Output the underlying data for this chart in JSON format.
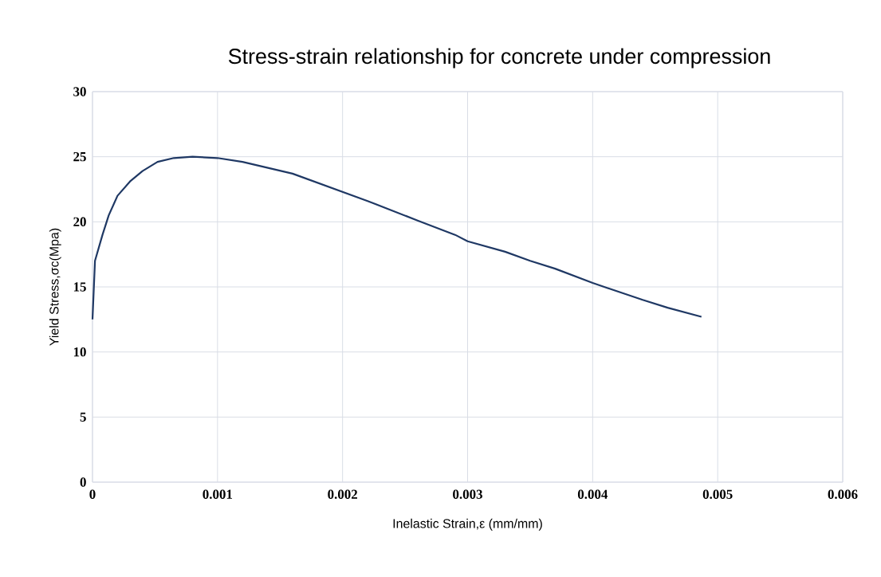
{
  "chart_data": {
    "type": "line",
    "title": "Stress-strain relationship for concrete under compression",
    "xlabel": "Inelastic Strain,ε (mm/mm)",
    "ylabel": "Yield Stress,σc(Mpa)",
    "x": [
      0,
      2e-05,
      8e-05,
      0.00013,
      0.0002,
      0.0003,
      0.0004,
      0.00052,
      0.00065,
      0.0008,
      0.001,
      0.0012,
      0.0016,
      0.002,
      0.0022,
      0.0026,
      0.0029,
      0.003,
      0.0033,
      0.0035,
      0.0037,
      0.004,
      0.0044,
      0.0046,
      0.00487
    ],
    "series": [
      {
        "color": "#1f3864",
        "values": [
          12.5,
          17,
          19,
          20.5,
          22,
          23.1,
          23.9,
          24.6,
          24.9,
          25,
          24.9,
          24.6,
          23.7,
          22.3,
          21.6,
          20.1,
          19,
          18.5,
          17.7,
          17,
          16.4,
          15.3,
          14.0,
          13.4,
          12.7
        ]
      }
    ],
    "xlim": [
      0,
      0.006
    ],
    "ylim": [
      0,
      30
    ],
    "xticks": [
      0,
      0.001,
      0.002,
      0.003,
      0.004,
      0.005,
      0.006
    ],
    "yticks": [
      0,
      5,
      10,
      15,
      20,
      25,
      30
    ],
    "grid": true
  }
}
